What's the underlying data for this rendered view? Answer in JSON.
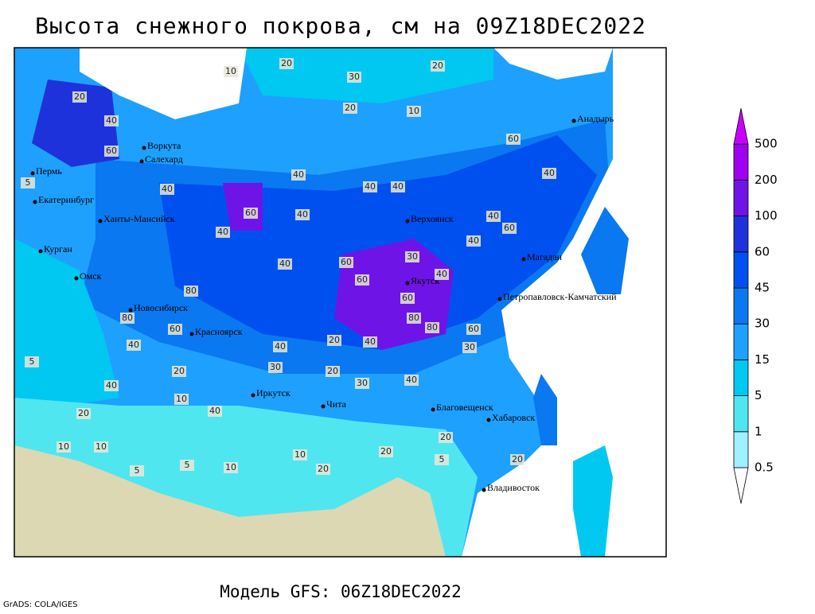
{
  "map": {
    "title": "Высота снежного покрова, см на 09Z18DEC2022",
    "footer": "Модель GFS: 06Z18DEC2022",
    "credit": "GrADS: COLA/IGES",
    "cities": [
      "Воркута",
      "Салехард",
      "Пермь",
      "Екатеринбург",
      "Ханты-Мансийск",
      "Курган",
      "Омск",
      "Новосибирск",
      "Красноярск",
      "Иркутск",
      "Чита",
      "Верхоянск",
      "Якутск",
      "Магадан",
      "Анадырь",
      "Петропавловск-Камчатский",
      "Благовещенск",
      "Хабаровск",
      "Владивосток"
    ],
    "contour_labels": [
      20,
      10,
      30,
      20,
      20,
      10,
      20,
      60,
      40,
      40,
      60,
      40,
      40,
      40,
      40,
      40,
      60,
      40,
      40,
      40,
      60,
      60,
      30,
      40,
      60,
      80,
      80,
      60,
      80,
      80,
      40,
      60,
      40,
      20,
      30,
      20,
      40,
      40,
      40,
      30,
      20,
      40,
      10,
      20,
      20,
      10,
      5,
      10,
      5,
      10,
      20,
      5,
      10,
      20,
      5,
      20,
      30,
      40,
      60,
      5
    ],
    "legend": {
      "levels": [
        0.5,
        1,
        5,
        15,
        30,
        45,
        60,
        100,
        200,
        500
      ],
      "colors": [
        "#ffffff",
        "#a0f0ff",
        "#50e6f0",
        "#00c8f0",
        "#1ea0ff",
        "#0a78f0",
        "#0050f0",
        "#1e32dc",
        "#6e14e6",
        "#a000f0",
        "#c800ff"
      ]
    }
  }
}
